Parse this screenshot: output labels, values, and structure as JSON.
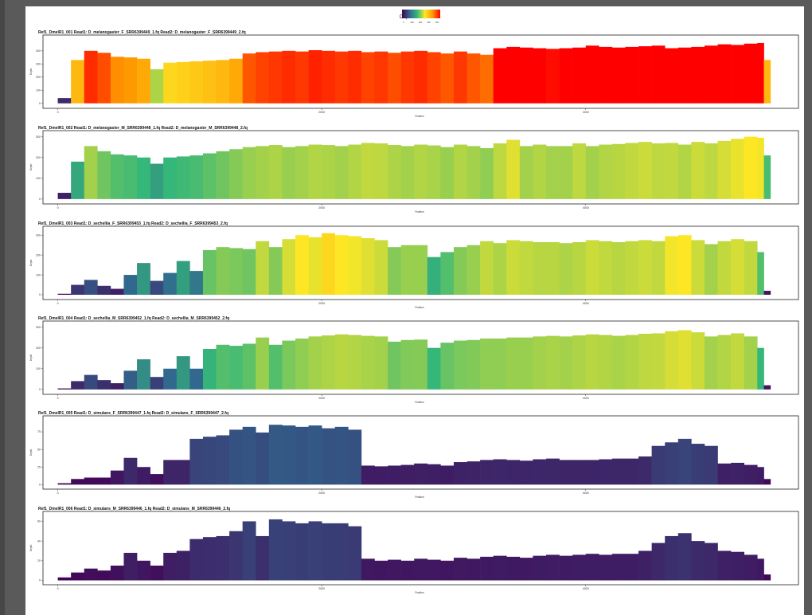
{
  "legend": {
    "title": "Depth",
    "ticks": [
      "0",
      "100",
      "200",
      "300",
      "400"
    ],
    "colors": [
      "#440154",
      "#31688e",
      "#35b779",
      "#fde725",
      "#ff9900",
      "#ff0000"
    ]
  },
  "axis_labels": {
    "x": "Position",
    "y": "Depth"
  },
  "chart_data": [
    {
      "type": "area",
      "title": "Ref1_DmelR1_001   Read1: D_melanogaster_F_SRR6399449_1.fq   Read2: D_melanogaster_F_SRR6399449_2.fq",
      "xlabel": "Position",
      "ylabel": "Depth",
      "xlim": [
        -100,
        5600
      ],
      "ylim": [
        -20,
        490
      ],
      "xticks": [
        0,
        2000,
        4000
      ],
      "yticks": [
        0,
        100,
        200,
        300,
        400
      ],
      "x": [
        0,
        100,
        200,
        300,
        400,
        500,
        600,
        700,
        800,
        900,
        1000,
        1100,
        1200,
        1300,
        1400,
        1500,
        1600,
        1700,
        1800,
        1900,
        2000,
        2100,
        2200,
        2300,
        2400,
        2500,
        2600,
        2700,
        2800,
        2900,
        3000,
        3100,
        3200,
        3300,
        3400,
        3500,
        3600,
        3700,
        3800,
        3900,
        4000,
        4100,
        4200,
        4300,
        4400,
        4500,
        4600,
        4700,
        4800,
        4900,
        5000,
        5100,
        5200,
        5300,
        5350
      ],
      "values": [
        40,
        330,
        400,
        385,
        355,
        350,
        340,
        260,
        310,
        315,
        320,
        325,
        330,
        340,
        380,
        390,
        395,
        400,
        395,
        405,
        400,
        395,
        400,
        390,
        395,
        385,
        395,
        400,
        390,
        380,
        395,
        380,
        370,
        420,
        430,
        425,
        420,
        415,
        420,
        425,
        440,
        430,
        425,
        430,
        435,
        440,
        420,
        425,
        430,
        440,
        450,
        445,
        455,
        460,
        330
      ]
    },
    {
      "type": "area",
      "title": "Ref1_DmelR1_002   Read1: D_melanogaster_M_SRR6399448_1.fq   Read2: D_melanogaster_M_SRR6399448_2.fq",
      "xlabel": "Position",
      "ylabel": "Depth",
      "xlim": [
        -100,
        5600
      ],
      "ylim": [
        -12,
        310
      ],
      "xticks": [
        0,
        2000,
        4000
      ],
      "yticks": [
        0,
        100,
        200,
        300
      ],
      "x": [
        0,
        100,
        200,
        300,
        400,
        500,
        600,
        700,
        800,
        900,
        1000,
        1100,
        1200,
        1300,
        1400,
        1500,
        1600,
        1700,
        1800,
        1900,
        2000,
        2100,
        2200,
        2300,
        2400,
        2500,
        2600,
        2700,
        2800,
        2900,
        3000,
        3100,
        3200,
        3300,
        3400,
        3500,
        3600,
        3700,
        3800,
        3900,
        4000,
        4100,
        4200,
        4300,
        4400,
        4500,
        4600,
        4700,
        4800,
        4900,
        5000,
        5100,
        5200,
        5300,
        5350
      ],
      "values": [
        30,
        180,
        255,
        230,
        215,
        210,
        200,
        170,
        200,
        205,
        210,
        220,
        230,
        240,
        250,
        255,
        260,
        250,
        255,
        262,
        260,
        255,
        262,
        270,
        268,
        260,
        255,
        262,
        258,
        250,
        262,
        255,
        245,
        268,
        285,
        255,
        262,
        255,
        255,
        268,
        255,
        262,
        265,
        270,
        275,
        268,
        270,
        262,
        275,
        268,
        280,
        290,
        300,
        295,
        210
      ]
    },
    {
      "type": "area",
      "title": "Ref1_DmelR1_003   Read1: D_sechellia_F_SRR6399453_1.fq   Read2: D_sechellia_F_SRR6399453_2.fq",
      "xlabel": "Position",
      "ylabel": "Depth",
      "xlim": [
        -100,
        5600
      ],
      "ylim": [
        -12,
        325
      ],
      "xticks": [
        0,
        2000,
        4000
      ],
      "yticks": [
        0,
        100,
        200,
        300
      ],
      "x": [
        0,
        100,
        200,
        300,
        400,
        500,
        600,
        700,
        800,
        900,
        1000,
        1100,
        1200,
        1300,
        1400,
        1500,
        1600,
        1700,
        1800,
        1900,
        2000,
        2100,
        2200,
        2300,
        2400,
        2500,
        2600,
        2700,
        2800,
        2900,
        3000,
        3100,
        3200,
        3300,
        3400,
        3500,
        3600,
        3700,
        3800,
        3900,
        4000,
        4100,
        4200,
        4300,
        4400,
        4500,
        4600,
        4700,
        4800,
        4900,
        5000,
        5100,
        5200,
        5300,
        5350
      ],
      "values": [
        5,
        50,
        75,
        45,
        30,
        100,
        160,
        70,
        110,
        170,
        120,
        225,
        240,
        235,
        230,
        270,
        240,
        280,
        300,
        290,
        310,
        300,
        295,
        285,
        275,
        240,
        250,
        250,
        190,
        215,
        240,
        250,
        270,
        260,
        275,
        270,
        265,
        265,
        260,
        265,
        275,
        270,
        265,
        270,
        275,
        270,
        295,
        300,
        275,
        255,
        270,
        280,
        270,
        215,
        20
      ]
    },
    {
      "type": "area",
      "title": "Ref1_DmelR1_004   Read1: D_sechellia_M_SRR6399452_1.fq   Read2: D_sechellia_M_SRR6399452_2.fq",
      "xlabel": "Position",
      "ylabel": "Depth",
      "xlim": [
        -100,
        5600
      ],
      "ylim": [
        -12,
        310
      ],
      "xticks": [
        0,
        2000,
        4000
      ],
      "yticks": [
        0,
        100,
        200,
        300
      ],
      "x": [
        0,
        100,
        200,
        300,
        400,
        500,
        600,
        700,
        800,
        900,
        1000,
        1100,
        1200,
        1300,
        1400,
        1500,
        1600,
        1700,
        1800,
        1900,
        2000,
        2100,
        2200,
        2300,
        2400,
        2500,
        2600,
        2700,
        2800,
        2900,
        3000,
        3100,
        3200,
        3300,
        3400,
        3500,
        3600,
        3700,
        3800,
        3900,
        4000,
        4100,
        4200,
        4300,
        4400,
        4500,
        4600,
        4700,
        4800,
        4900,
        5000,
        5100,
        5200,
        5300,
        5350
      ],
      "values": [
        5,
        40,
        70,
        45,
        30,
        90,
        145,
        60,
        100,
        160,
        100,
        195,
        215,
        210,
        220,
        250,
        215,
        235,
        245,
        255,
        260,
        265,
        262,
        258,
        255,
        230,
        238,
        240,
        200,
        225,
        235,
        238,
        245,
        245,
        250,
        250,
        255,
        258,
        255,
        260,
        265,
        262,
        258,
        262,
        268,
        270,
        280,
        285,
        275,
        255,
        262,
        270,
        255,
        200,
        20
      ]
    },
    {
      "type": "area",
      "title": "Ref1_DmelR1_005   Read1: D_simulans_F_SRR6399447_1.fq   Read2: D_simulans_F_SRR6399447_2.fq",
      "xlabel": "Position",
      "ylabel": "Depth",
      "xlim": [
        -100,
        5600
      ],
      "ylim": [
        -3,
        92
      ],
      "xticks": [
        0,
        2000,
        4000
      ],
      "yticks": [
        0,
        25,
        50,
        75
      ],
      "x": [
        0,
        100,
        200,
        300,
        400,
        500,
        600,
        700,
        800,
        900,
        1000,
        1100,
        1200,
        1300,
        1400,
        1500,
        1600,
        1700,
        1800,
        1900,
        2000,
        2100,
        2200,
        2300,
        2400,
        2500,
        2600,
        2700,
        2800,
        2900,
        3000,
        3100,
        3200,
        3300,
        3400,
        3500,
        3600,
        3700,
        3800,
        3900,
        4000,
        4100,
        4200,
        4300,
        4400,
        4500,
        4600,
        4700,
        4800,
        4900,
        5000,
        5100,
        5200,
        5300,
        5350
      ],
      "values": [
        2,
        8,
        10,
        10,
        20,
        38,
        25,
        15,
        35,
        35,
        65,
        68,
        70,
        78,
        82,
        74,
        85,
        84,
        82,
        84,
        80,
        82,
        78,
        27,
        26,
        27,
        28,
        30,
        29,
        27,
        32,
        33,
        35,
        36,
        35,
        34,
        36,
        37,
        35,
        35,
        35,
        36,
        37,
        37,
        40,
        55,
        60,
        65,
        58,
        55,
        30,
        31,
        28,
        25,
        8
      ]
    },
    {
      "type": "area",
      "title": "Ref1_DmelR1_006   Read1: D_simulans_M_SRR6399446_1.fq   Read2: D_simulans_M_SRR6399446_2.fq",
      "xlabel": "Position",
      "ylabel": "Depth",
      "xlim": [
        -100,
        5600
      ],
      "ylim": [
        -2,
        66
      ],
      "xticks": [
        0,
        2000,
        4000
      ],
      "yticks": [
        0,
        20,
        40,
        60
      ],
      "x": [
        0,
        100,
        200,
        300,
        400,
        500,
        600,
        700,
        800,
        900,
        1000,
        1100,
        1200,
        1300,
        1400,
        1500,
        1600,
        1700,
        1800,
        1900,
        2000,
        2100,
        2200,
        2300,
        2400,
        2500,
        2600,
        2700,
        2800,
        2900,
        3000,
        3100,
        3200,
        3300,
        3400,
        3500,
        3600,
        3700,
        3800,
        3900,
        4000,
        4100,
        4200,
        4300,
        4400,
        4500,
        4600,
        4700,
        4800,
        4900,
        5000,
        5100,
        5200,
        5300,
        5350
      ],
      "values": [
        3,
        8,
        12,
        10,
        15,
        28,
        20,
        15,
        28,
        30,
        42,
        44,
        45,
        50,
        60,
        45,
        62,
        60,
        58,
        60,
        58,
        58,
        55,
        22,
        20,
        21,
        20,
        22,
        21,
        20,
        23,
        22,
        24,
        25,
        24,
        23,
        25,
        26,
        25,
        26,
        27,
        26,
        27,
        27,
        30,
        38,
        45,
        48,
        40,
        38,
        30,
        29,
        26,
        22,
        6
      ]
    }
  ]
}
